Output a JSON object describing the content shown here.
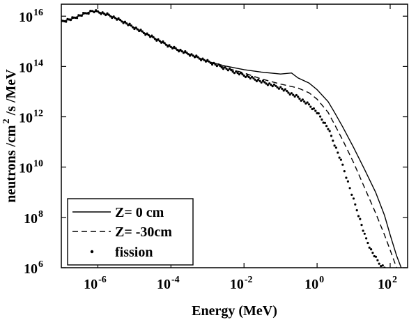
{
  "chart_data": {
    "type": "line",
    "xlabel": "Energy (MeV)",
    "ylabel": {
      "prefix": "neutrons /cm",
      "sup": "2",
      "suffix": " /s /MeV"
    },
    "xscale": "log",
    "yscale": "log",
    "xlim": [
      1e-07,
      300
    ],
    "ylim": [
      1000000.0,
      3e+16
    ],
    "x_ticks": [
      {
        "base": "10",
        "exp": "-6",
        "value": 1e-06
      },
      {
        "base": "10",
        "exp": "-4",
        "value": 0.0001
      },
      {
        "base": "10",
        "exp": "-2",
        "value": 0.01
      },
      {
        "base": "10",
        "exp": "0",
        "value": 1
      },
      {
        "base": "10",
        "exp": "2",
        "value": 100
      }
    ],
    "y_ticks": [
      {
        "base": "10",
        "exp": "6",
        "value": 1000000.0
      },
      {
        "base": "10",
        "exp": "8",
        "value": 100000000.0
      },
      {
        "base": "10",
        "exp": "10",
        "value": 10000000000.0
      },
      {
        "base": "10",
        "exp": "12",
        "value": 1000000000000.0
      },
      {
        "base": "10",
        "exp": "14",
        "value": 100000000000000.0
      },
      {
        "base": "10",
        "exp": "16",
        "value": 1e+16
      }
    ],
    "legend_position": "bottom-left",
    "grid": false,
    "series": [
      {
        "name": "Z= 0 cm",
        "style": "solid",
        "points": [
          [
            1e-07,
            6000000000000000.0
          ],
          [
            2e-07,
            8000000000000000.0
          ],
          [
            4e-07,
            1.2e+16
          ],
          [
            7e-07,
            1.6e+16
          ],
          [
            1e-06,
            1.5e+16
          ],
          [
            2e-06,
            1.1e+16
          ],
          [
            5e-06,
            6000000000000000.0
          ],
          [
            1e-05,
            3500000000000000.0
          ],
          [
            3e-05,
            1500000000000000.0
          ],
          [
            0.0001,
            600000000000000.0
          ],
          [
            0.0003,
            320000000000000.0
          ],
          [
            0.001,
            160000000000000.0
          ],
          [
            0.003,
            105000000000000.0
          ],
          [
            0.01,
            75000000000000.0
          ],
          [
            0.03,
            60000000000000.0
          ],
          [
            0.1,
            50000000000000.0
          ],
          [
            0.2,
            55000000000000.0
          ],
          [
            0.3,
            35000000000000.0
          ],
          [
            0.6,
            22000000000000.0
          ],
          [
            1,
            12000000000000.0
          ],
          [
            2,
            4000000000000.0
          ],
          [
            3,
            1500000000000.0
          ],
          [
            5,
            400000000000.0
          ],
          [
            10,
            60000000000.0
          ],
          [
            20,
            8000000000.0
          ],
          [
            40,
            1000000000.0
          ],
          [
            70,
            120000000.0
          ],
          [
            100,
            20000000.0
          ],
          [
            150,
            3000000.0
          ],
          [
            200,
            1000000.0
          ]
        ]
      },
      {
        "name": "Z= -30cm",
        "style": "dashed",
        "points": [
          [
            1e-07,
            6000000000000000.0
          ],
          [
            2e-07,
            8000000000000000.0
          ],
          [
            4e-07,
            1.2e+16
          ],
          [
            7e-07,
            1.6e+16
          ],
          [
            1e-06,
            1.5e+16
          ],
          [
            2e-06,
            1.1e+16
          ],
          [
            5e-06,
            6000000000000000.0
          ],
          [
            1e-05,
            3500000000000000.0
          ],
          [
            3e-05,
            1500000000000000.0
          ],
          [
            0.0001,
            600000000000000.0
          ],
          [
            0.0003,
            320000000000000.0
          ],
          [
            0.001,
            160000000000000.0
          ],
          [
            0.003,
            90000000000000.0
          ],
          [
            0.01,
            55000000000000.0
          ],
          [
            0.03,
            32000000000000.0
          ],
          [
            0.1,
            20000000000000.0
          ],
          [
            0.2,
            16000000000000.0
          ],
          [
            0.3,
            14000000000000.0
          ],
          [
            0.6,
            9000000000000.0
          ],
          [
            1,
            5000000000000.0
          ],
          [
            2,
            1500000000000.0
          ],
          [
            3,
            500000000000.0
          ],
          [
            5,
            120000000000.0
          ],
          [
            10,
            15000000000.0
          ],
          [
            20,
            1500000000.0
          ],
          [
            40,
            150000000.0
          ],
          [
            70,
            20000000.0
          ],
          [
            100,
            5000000.0
          ],
          [
            150,
            1000000.0
          ]
        ]
      },
      {
        "name": "fission",
        "style": "dots",
        "points": [
          [
            1e-07,
            6000000000000000.0
          ],
          [
            2e-07,
            8000000000000000.0
          ],
          [
            4e-07,
            1.2e+16
          ],
          [
            7e-07,
            1.6e+16
          ],
          [
            1e-06,
            1.5e+16
          ],
          [
            2e-06,
            1.1e+16
          ],
          [
            5e-06,
            6000000000000000.0
          ],
          [
            1e-05,
            3500000000000000.0
          ],
          [
            3e-05,
            1500000000000000.0
          ],
          [
            0.0001,
            600000000000000.0
          ],
          [
            0.0003,
            320000000000000.0
          ],
          [
            0.001,
            160000000000000.0
          ],
          [
            0.003,
            85000000000000.0
          ],
          [
            0.01,
            45000000000000.0
          ],
          [
            0.03,
            25000000000000.0
          ],
          [
            0.1,
            14000000000000.0
          ],
          [
            0.2,
            8000000000000.0
          ],
          [
            0.3,
            6000000000000.0
          ],
          [
            0.6,
            3000000000000.0
          ],
          [
            1,
            1500000000000.0
          ],
          [
            2,
            350000000000.0
          ],
          [
            3,
            80000000000.0
          ],
          [
            5,
            12000000000.0
          ],
          [
            7,
            2500000000.0
          ],
          [
            10,
            500000000.0
          ],
          [
            15,
            80000000.0
          ],
          [
            20,
            20000000.0
          ],
          [
            30,
            5000000.0
          ],
          [
            50,
            1500000.0
          ],
          [
            70,
            1000000.0
          ]
        ]
      }
    ]
  }
}
